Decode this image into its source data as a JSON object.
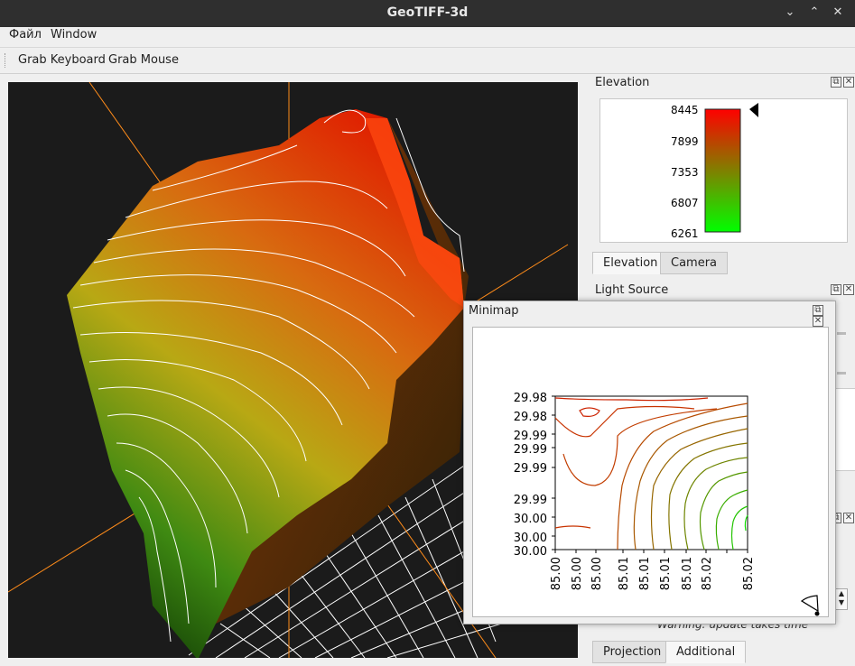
{
  "window": {
    "title": "GeoTIFF-3d"
  },
  "menu": {
    "file": "Файл",
    "window": "Window"
  },
  "toolbar": {
    "grab_keyboard": "Grab Keyboard",
    "grab_mouse": "Grab Mouse"
  },
  "elevation_dock": {
    "title": "Elevation",
    "ticks": [
      "8445",
      "7899",
      "7353",
      "6807",
      "6261"
    ],
    "gradient": {
      "top": "#ff0000",
      "bottom": "#00ff00"
    },
    "tabs": [
      "Elevation",
      "Camera"
    ],
    "active_tab": "Elevation"
  },
  "light_dock": {
    "title": "Light Source"
  },
  "minimap": {
    "title": "Minimap",
    "y_ticks": [
      "29.98",
      "29.98",
      "29.99",
      "29.99",
      "29.99",
      "29.99",
      "30.00",
      "30.00",
      "30.00"
    ],
    "x_ticks": [
      "85.00",
      "85.00",
      "85.00",
      "85.01",
      "85.01",
      "85.01",
      "85.01",
      "85.02",
      "85.02"
    ]
  },
  "bottom_dock": {
    "warning": "Warning: update takes time",
    "tabs": [
      "Projection",
      "Additional"
    ],
    "active_tab": "Additional"
  },
  "colors": {
    "axis": "#ff8c1a",
    "contour": "#ffffff",
    "viewport_bg": "#1b1b1b"
  }
}
